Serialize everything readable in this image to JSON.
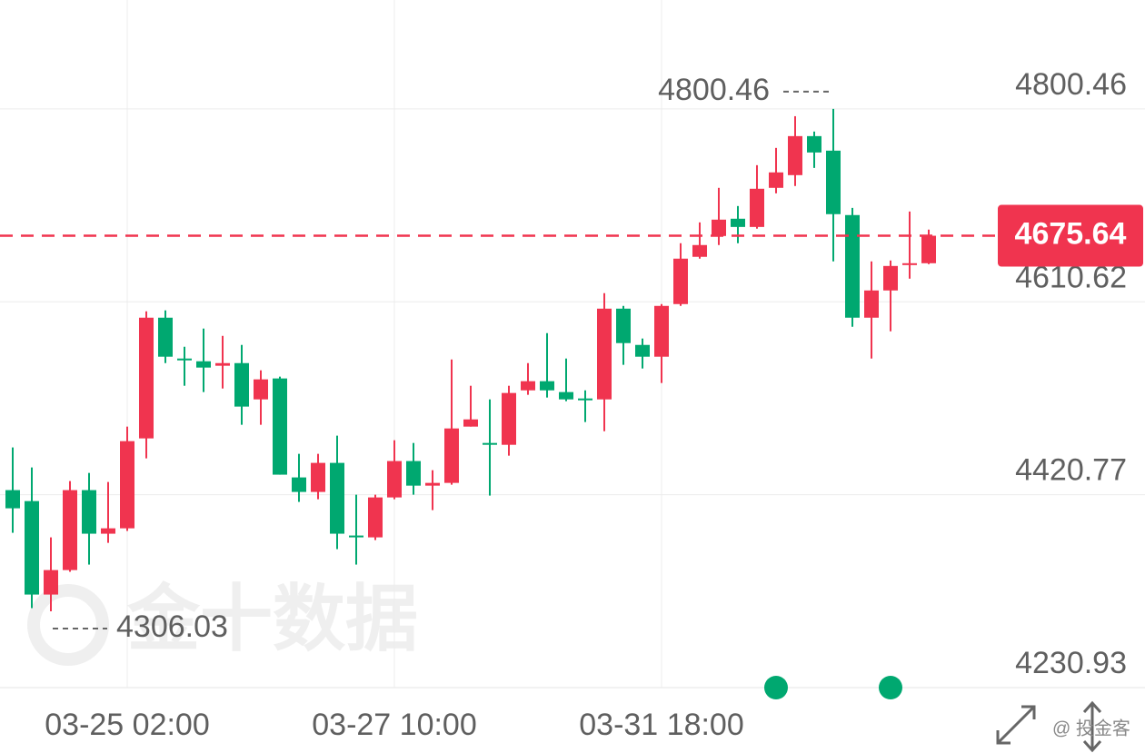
{
  "chart_data": {
    "type": "candlestick",
    "categories": [
      null,
      null,
      null,
      null,
      null,
      null,
      "03-25 02:00",
      null,
      null,
      null,
      null,
      null,
      null,
      null,
      null,
      null,
      null,
      null,
      null,
      null,
      "03-27 10:00",
      null,
      null,
      null,
      null,
      null,
      null,
      null,
      null,
      null,
      null,
      null,
      null,
      null,
      "03-31 18:00",
      null,
      null,
      null,
      null,
      null,
      null,
      null,
      null,
      null,
      null,
      null,
      null,
      null,
      null
    ],
    "open": [
      4425.3,
      4414.5,
      4322.5,
      4346.6,
      4425.3,
      4382.4,
      4387.7,
      4476.2,
      4595.0,
      4554.8,
      4552.1,
      4547.7,
      4550.3,
      4514.6,
      4535.2,
      4437.8,
      4423.5,
      4452.1,
      4380.6,
      4378.8,
      4418.1,
      4453.9,
      4429.7,
      4432.4,
      4487.8,
      4471.7,
      4469.9,
      4523.5,
      4532.5,
      4521.8,
      4515.5,
      4514.6,
      4603.9,
      4568.2,
      4556.6,
      4608.4,
      4654.9,
      4675.4,
      4692.4,
      4684.3,
      4722.8,
      4735.3,
      4773.7,
      4759.4,
      4696.0,
      4595.0,
      4621.8,
      4646.8,
      4648.6
    ],
    "high": [
      4467.3,
      4447.6,
      4378.8,
      4434.2,
      4442.2,
      4433.3,
      4487.8,
      4601.3,
      4602.2,
      4566.4,
      4584.3,
      4577.1,
      4568.2,
      4543.2,
      4537.0,
      4461.0,
      4461.0,
      4478.9,
      4420.8,
      4420.8,
      4474.4,
      4471.7,
      4444.9,
      4553.9,
      4528.0,
      4514.6,
      4528.0,
      4550.3,
      4579.8,
      4554.8,
      4523.5,
      4619.1,
      4606.6,
      4574.5,
      4608.4,
      4668.3,
      4688.8,
      4722.8,
      4704.9,
      4745.1,
      4762.1,
      4793.3,
      4778.2,
      4800.46,
      4703.1,
      4650.4,
      4651.3,
      4699.5,
      4681.7
    ],
    "low": [
      4383.3,
      4309.1,
      4306.03,
      4344.9,
      4352.0,
      4373.4,
      4385.1,
      4456.5,
      4550.3,
      4528.0,
      4521.8,
      4525.3,
      4489.6,
      4489.6,
      4440.5,
      4413.7,
      4416.3,
      4367.2,
      4352.0,
      4376.1,
      4416.3,
      4420.8,
      4405.6,
      4430.6,
      4487.8,
      4419.9,
      4459.2,
      4519.1,
      4516.4,
      4512.8,
      4492.3,
      4483.3,
      4548.6,
      4545.0,
      4530.7,
      4606.6,
      4653.1,
      4666.5,
      4668.3,
      4682.6,
      4717.4,
      4724.6,
      4742.4,
      4650.4,
      4586.1,
      4554.8,
      4581.6,
      4633.4,
      4647.7
    ],
    "close": [
      4407.4,
      4322.5,
      4346.6,
      4425.3,
      4382.4,
      4387.7,
      4473.5,
      4595.0,
      4556.6,
      4553.0,
      4545.9,
      4550.3,
      4507.5,
      4534.3,
      4440.5,
      4423.5,
      4452.1,
      4382.4,
      4378.8,
      4418.1,
      4453.9,
      4429.7,
      4432.4,
      4486.0,
      4494.9,
      4469.9,
      4520.9,
      4532.5,
      4523.5,
      4514.6,
      4513.7,
      4603.9,
      4570.0,
      4556.6,
      4606.6,
      4653.1,
      4666.5,
      4691.5,
      4684.3,
      4721.9,
      4738.0,
      4773.7,
      4757.6,
      4696.9,
      4595.0,
      4621.8,
      4645.9,
      4648.6,
      4675.64
    ],
    "up_color": "#f0344f",
    "down_color": "#00a870",
    "ylim": [
      4230.93,
      4907.67
    ],
    "yticks": [
      4230.93,
      4420.77,
      4610.62,
      4800.46
    ],
    "grid": true,
    "last_price": 4675.64,
    "high_mark": 4800.46,
    "low_mark": 4306.03,
    "watermark": "金十数据",
    "credit": "@ 投金客"
  }
}
